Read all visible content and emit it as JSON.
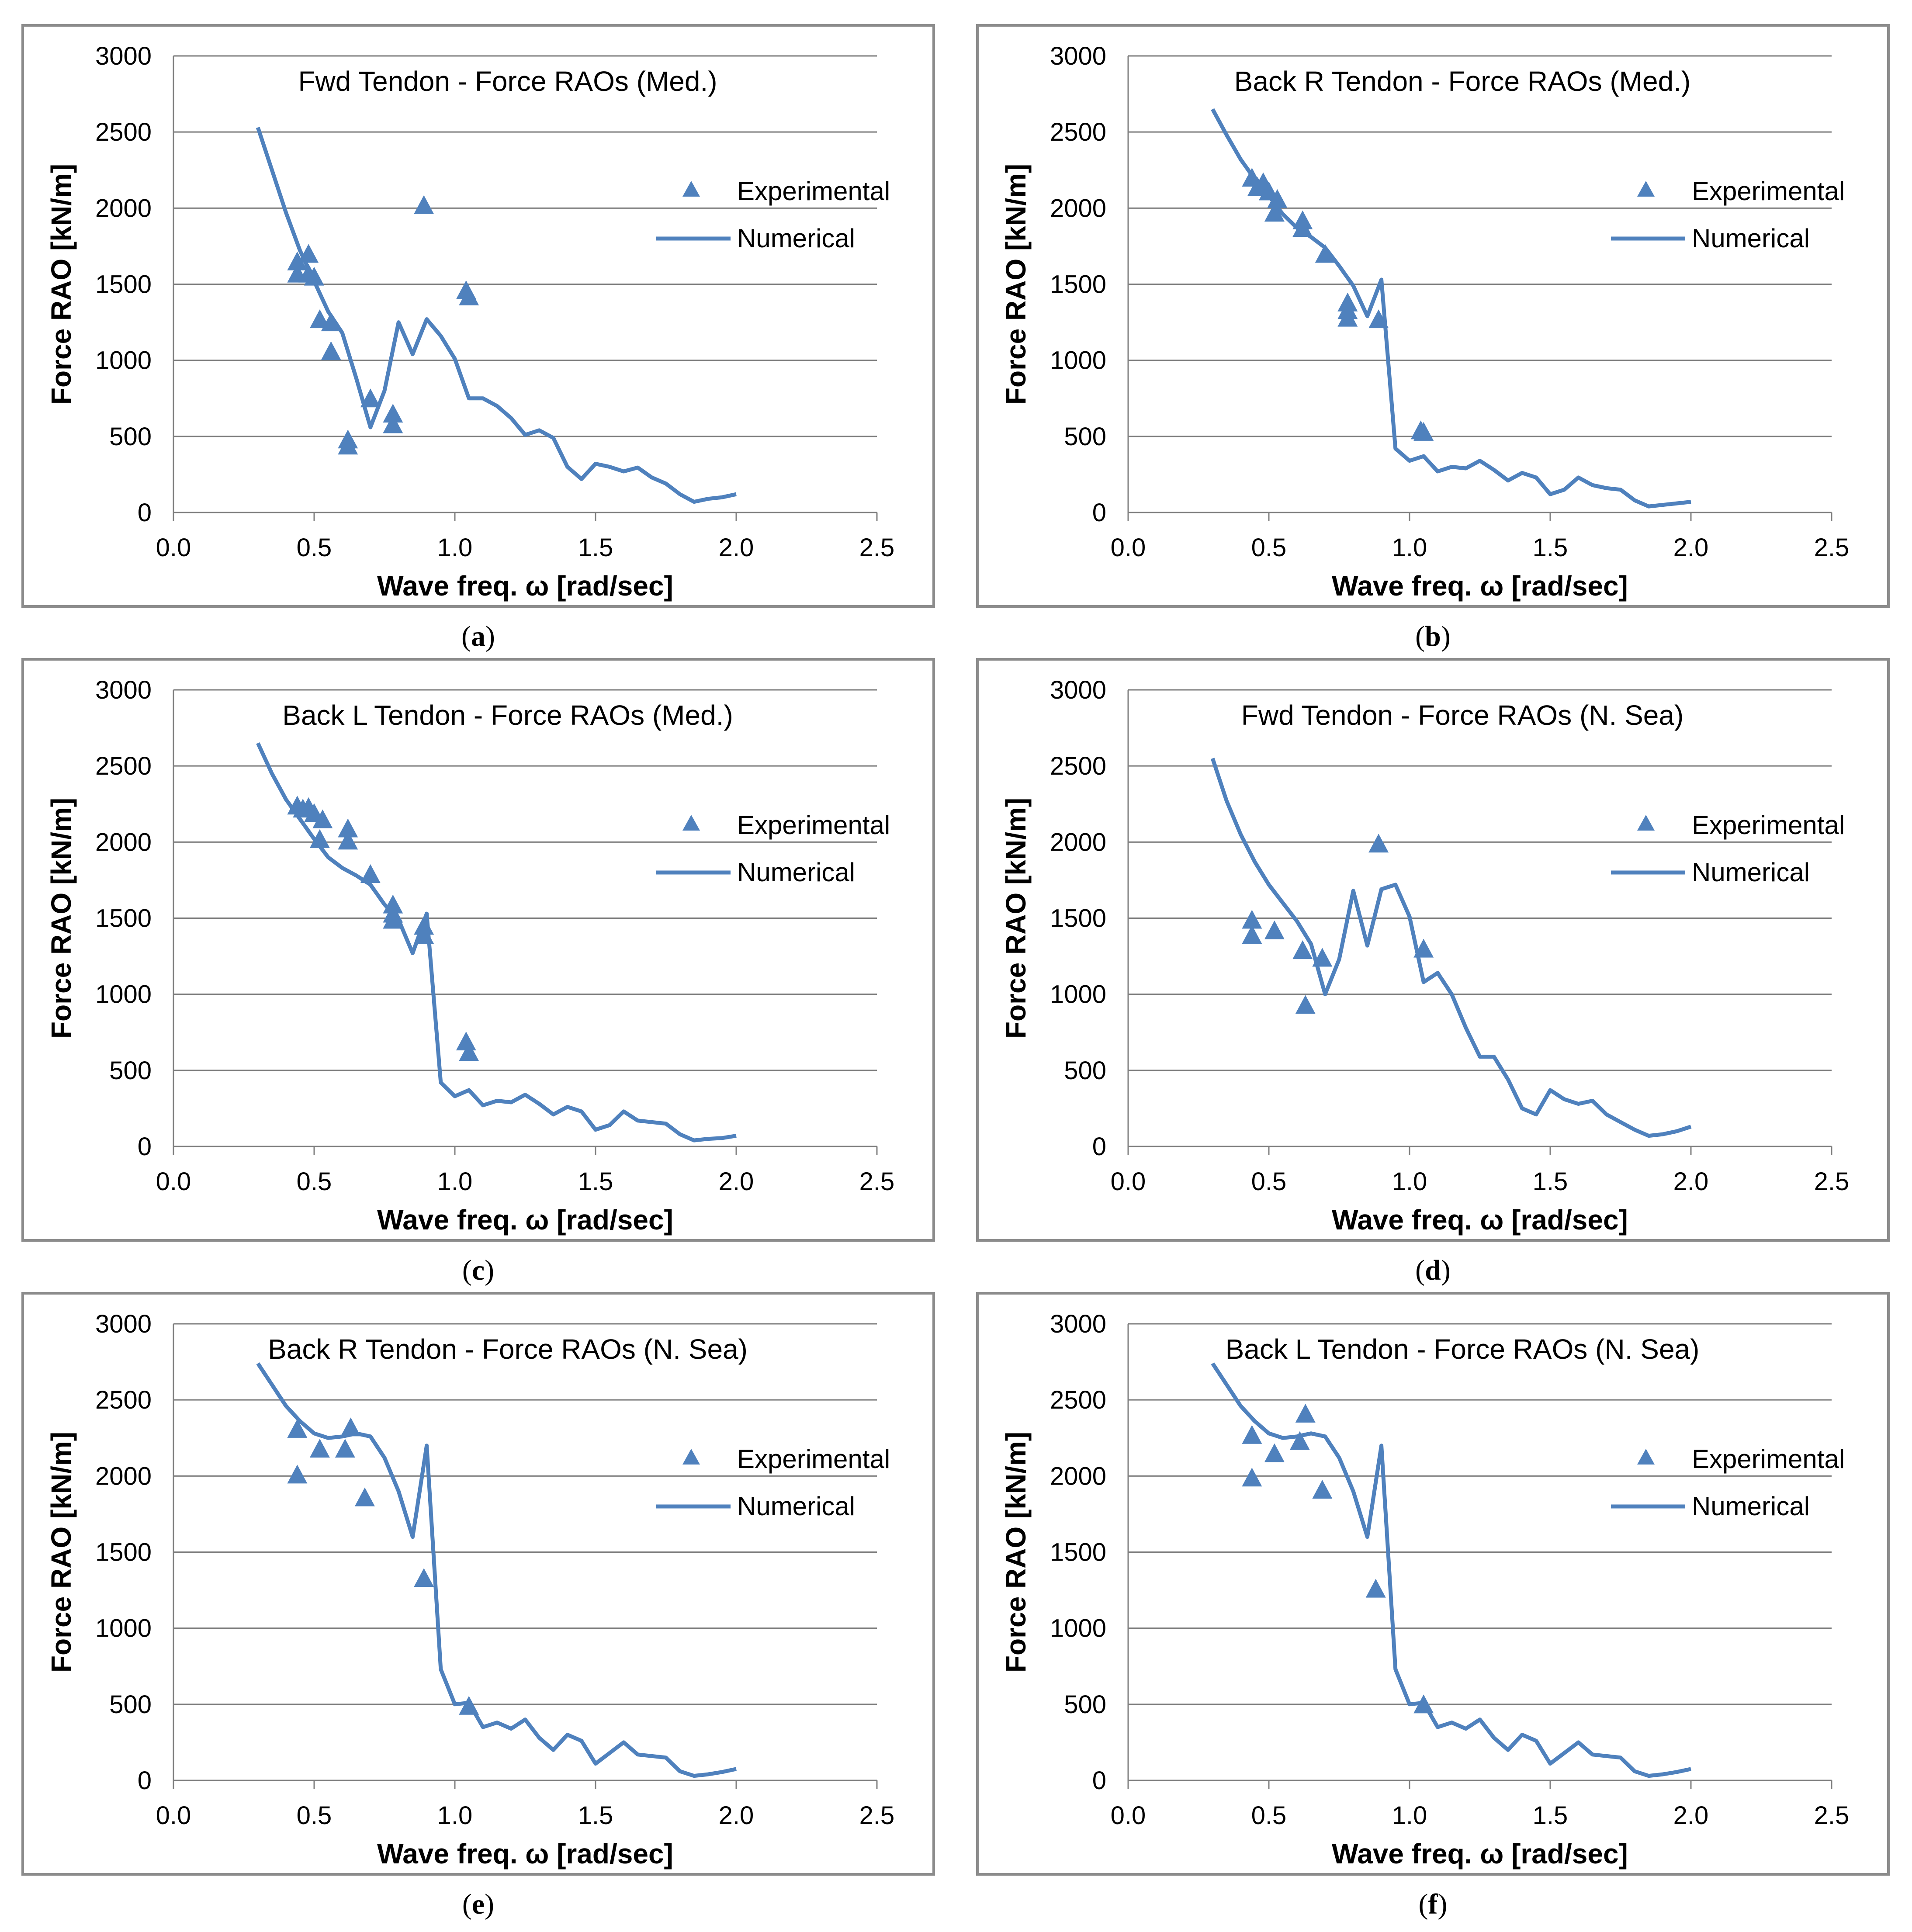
{
  "colors": {
    "series": "#4F81BD",
    "grid": "#7f7f7f",
    "frame": "#8c8c8c",
    "text": "#000000"
  },
  "chart_data": [
    {
      "label": "a",
      "type": "line",
      "title": "Fwd Tendon -  Force RAOs (Med.)",
      "xlabel": "Wave freq. ω [rad/sec]",
      "ylabel": "Force RAO [kN/m]",
      "xlim": [
        0,
        2.5
      ],
      "ylim": [
        0,
        3000
      ],
      "xticks": [
        "0.0",
        "0.5",
        "1.0",
        "1.5",
        "2.0",
        "2.5"
      ],
      "yticks": [
        "0",
        "500",
        "1000",
        "1500",
        "2000",
        "2500",
        "3000"
      ],
      "grid": "horizontal",
      "legend": {
        "position": "right",
        "entries": [
          "Experimental",
          "Numerical"
        ]
      },
      "series": [
        {
          "name": "Numerical",
          "kind": "line",
          "x": [
            0.3,
            0.4,
            0.45,
            0.5,
            0.55,
            0.6,
            0.65,
            0.7,
            0.75,
            0.8,
            0.85,
            0.9,
            0.95,
            1.0,
            1.05,
            1.1,
            1.15,
            1.2,
            1.25,
            1.3,
            1.35,
            1.4,
            1.45,
            1.5,
            1.55,
            1.6,
            1.65,
            1.7,
            1.75,
            1.8,
            1.85,
            1.9,
            1.95,
            2.0
          ],
          "y": [
            2530,
            1970,
            1720,
            1520,
            1320,
            1180,
            880,
            560,
            800,
            1250,
            1040,
            1270,
            1160,
            1010,
            750,
            750,
            700,
            620,
            510,
            540,
            490,
            300,
            220,
            320,
            300,
            270,
            295,
            230,
            190,
            120,
            70,
            90,
            100,
            120
          ]
        },
        {
          "name": "Experimental",
          "kind": "scatter",
          "x": [
            0.44,
            0.44,
            0.48,
            0.48,
            0.5,
            0.52,
            0.56,
            0.56,
            0.62,
            0.62,
            0.7,
            0.78,
            0.78,
            0.89,
            1.04,
            1.05
          ],
          "y": [
            1640,
            1560,
            1690,
            1560,
            1540,
            1260,
            1240,
            1050,
            470,
            430,
            740,
            640,
            570,
            2010,
            1450,
            1410
          ]
        }
      ]
    },
    {
      "label": "b",
      "type": "line",
      "title": "Back R Tendon -  Force RAOs (Med.)",
      "xlabel": "Wave freq. ω [rad/sec]",
      "ylabel": "Force RAO [kN/m]",
      "xlim": [
        0,
        2.5
      ],
      "ylim": [
        0,
        3000
      ],
      "xticks": [
        "0.0",
        "0.5",
        "1.0",
        "1.5",
        "2.0",
        "2.5"
      ],
      "yticks": [
        "0",
        "500",
        "1000",
        "1500",
        "2000",
        "2500",
        "3000"
      ],
      "grid": "horizontal",
      "legend": {
        "position": "right",
        "entries": [
          "Experimental",
          "Numerical"
        ]
      },
      "series": [
        {
          "name": "Numerical",
          "kind": "line",
          "x": [
            0.3,
            0.35,
            0.4,
            0.45,
            0.5,
            0.55,
            0.6,
            0.65,
            0.7,
            0.75,
            0.8,
            0.85,
            0.9,
            0.95,
            1.0,
            1.05,
            1.1,
            1.15,
            1.2,
            1.25,
            1.3,
            1.35,
            1.4,
            1.45,
            1.5,
            1.55,
            1.6,
            1.65,
            1.7,
            1.75,
            1.8,
            1.85,
            1.9,
            1.95,
            2.0
          ],
          "y": [
            2650,
            2480,
            2320,
            2190,
            2080,
            1960,
            1870,
            1810,
            1740,
            1620,
            1490,
            1290,
            1530,
            420,
            340,
            370,
            270,
            300,
            290,
            340,
            280,
            210,
            260,
            230,
            120,
            150,
            230,
            180,
            160,
            150,
            80,
            40,
            50,
            60,
            70
          ]
        },
        {
          "name": "Experimental",
          "kind": "scatter",
          "x": [
            0.44,
            0.46,
            0.48,
            0.5,
            0.52,
            0.53,
            0.62,
            0.62,
            0.7,
            0.78,
            0.78,
            0.78,
            0.89,
            1.04,
            1.05
          ],
          "y": [
            2190,
            2130,
            2160,
            2100,
            1960,
            2050,
            1910,
            1860,
            1690,
            1370,
            1320,
            1270,
            1260,
            530,
            520
          ]
        }
      ]
    },
    {
      "label": "c",
      "type": "line",
      "title": "Back L Tendon -  Force RAOs (Med.)",
      "xlabel": "Wave freq. ω [rad/sec]",
      "ylabel": "Force RAO [kN/m]",
      "xlim": [
        0,
        2.5
      ],
      "ylim": [
        0,
        3000
      ],
      "xticks": [
        "0.0",
        "0.5",
        "1.0",
        "1.5",
        "2.0",
        "2.5"
      ],
      "yticks": [
        "0",
        "500",
        "1000",
        "1500",
        "2000",
        "2500",
        "3000"
      ],
      "grid": "horizontal",
      "legend": {
        "position": "right",
        "entries": [
          "Experimental",
          "Numerical"
        ]
      },
      "series": [
        {
          "name": "Numerical",
          "kind": "line",
          "x": [
            0.3,
            0.35,
            0.4,
            0.45,
            0.5,
            0.55,
            0.6,
            0.65,
            0.7,
            0.75,
            0.8,
            0.85,
            0.9,
            0.95,
            1.0,
            1.05,
            1.1,
            1.15,
            1.2,
            1.25,
            1.3,
            1.35,
            1.4,
            1.45,
            1.5,
            1.55,
            1.6,
            1.65,
            1.7,
            1.75,
            1.8,
            1.85,
            1.9,
            1.95,
            2.0
          ],
          "y": [
            2650,
            2450,
            2280,
            2150,
            2020,
            1900,
            1830,
            1780,
            1720,
            1590,
            1490,
            1270,
            1530,
            420,
            330,
            370,
            270,
            300,
            290,
            340,
            280,
            210,
            260,
            230,
            110,
            140,
            230,
            170,
            160,
            150,
            80,
            40,
            50,
            55,
            70
          ]
        },
        {
          "name": "Experimental",
          "kind": "scatter",
          "x": [
            0.44,
            0.46,
            0.48,
            0.5,
            0.52,
            0.53,
            0.62,
            0.62,
            0.7,
            0.78,
            0.78,
            0.78,
            0.89,
            0.89,
            1.04,
            1.05
          ],
          "y": [
            2230,
            2210,
            2220,
            2180,
            2010,
            2140,
            2080,
            2000,
            1780,
            1580,
            1520,
            1480,
            1440,
            1380,
            680,
            610
          ]
        }
      ]
    },
    {
      "label": "d",
      "type": "line",
      "title": "Fwd Tendon - Force RAOs  (N. Sea)",
      "xlabel": "Wave freq. ω [rad/sec]",
      "ylabel": "Force RAO [kN/m]",
      "xlim": [
        0,
        2.5
      ],
      "ylim": [
        0,
        3000
      ],
      "xticks": [
        "0.0",
        "0.5",
        "1.0",
        "1.5",
        "2.0",
        "2.5"
      ],
      "yticks": [
        "0",
        "500",
        "1000",
        "1500",
        "2000",
        "2500",
        "3000"
      ],
      "grid": "horizontal",
      "legend": {
        "position": "right",
        "entries": [
          "Experimental",
          "Numerical"
        ]
      },
      "series": [
        {
          "name": "Numerical",
          "kind": "line",
          "x": [
            0.3,
            0.35,
            0.4,
            0.45,
            0.5,
            0.55,
            0.6,
            0.65,
            0.7,
            0.75,
            0.8,
            0.85,
            0.9,
            0.95,
            1.0,
            1.05,
            1.1,
            1.15,
            1.2,
            1.25,
            1.3,
            1.35,
            1.4,
            1.45,
            1.5,
            1.55,
            1.6,
            1.65,
            1.7,
            1.75,
            1.8,
            1.85,
            1.9,
            1.95,
            2.0
          ],
          "y": [
            2550,
            2270,
            2050,
            1870,
            1720,
            1600,
            1480,
            1330,
            1000,
            1230,
            1680,
            1320,
            1690,
            1720,
            1510,
            1080,
            1140,
            1000,
            780,
            590,
            590,
            440,
            250,
            210,
            370,
            310,
            280,
            300,
            210,
            160,
            110,
            70,
            80,
            100,
            130
          ]
        },
        {
          "name": "Experimental",
          "kind": "scatter",
          "x": [
            0.44,
            0.44,
            0.52,
            0.62,
            0.63,
            0.69,
            0.89,
            1.05
          ],
          "y": [
            1480,
            1380,
            1410,
            1280,
            920,
            1230,
            1980,
            1290
          ]
        }
      ]
    },
    {
      "label": "e",
      "type": "line",
      "title": "Back R Tendon - Force RAOs  (N. Sea)",
      "xlabel": "Wave freq. ω [rad/sec]",
      "ylabel": "Force RAO [kN/m]",
      "xlim": [
        0,
        2.5
      ],
      "ylim": [
        0,
        3000
      ],
      "xticks": [
        "0.0",
        "0.5",
        "1.0",
        "1.5",
        "2.0",
        "2.5"
      ],
      "yticks": [
        "0",
        "500",
        "1000",
        "1500",
        "2000",
        "2500",
        "3000"
      ],
      "grid": "horizontal",
      "legend": {
        "position": "right",
        "entries": [
          "Experimental",
          "Numerical"
        ]
      },
      "series": [
        {
          "name": "Numerical",
          "kind": "line",
          "x": [
            0.3,
            0.35,
            0.4,
            0.45,
            0.5,
            0.55,
            0.6,
            0.65,
            0.7,
            0.75,
            0.8,
            0.85,
            0.9,
            0.95,
            1.0,
            1.05,
            1.1,
            1.15,
            1.2,
            1.25,
            1.3,
            1.35,
            1.4,
            1.45,
            1.5,
            1.55,
            1.6,
            1.65,
            1.7,
            1.75,
            1.8,
            1.85,
            1.9,
            1.95,
            2.0
          ],
          "y": [
            2740,
            2600,
            2460,
            2360,
            2280,
            2250,
            2260,
            2280,
            2260,
            2120,
            1900,
            1600,
            2200,
            730,
            500,
            510,
            350,
            380,
            340,
            400,
            280,
            200,
            300,
            260,
            110,
            180,
            250,
            170,
            160,
            150,
            60,
            30,
            40,
            55,
            75
          ]
        },
        {
          "name": "Experimental",
          "kind": "scatter",
          "x": [
            0.44,
            0.44,
            0.52,
            0.61,
            0.63,
            0.68,
            0.89,
            1.05
          ],
          "y": [
            2300,
            2000,
            2170,
            2170,
            2310,
            1850,
            1320,
            480
          ]
        }
      ]
    },
    {
      "label": "f",
      "type": "line",
      "title": "Back L Tendon - Force RAOs  (N. Sea)",
      "xlabel": "Wave freq. ω [rad/sec]",
      "ylabel": "Force RAO [kN/m]",
      "xlim": [
        0,
        2.5
      ],
      "ylim": [
        0,
        3000
      ],
      "xticks": [
        "0.0",
        "0.5",
        "1.0",
        "1.5",
        "2.0",
        "2.5"
      ],
      "yticks": [
        "0",
        "500",
        "1000",
        "1500",
        "2000",
        "2500",
        "3000"
      ],
      "grid": "horizontal",
      "legend": {
        "position": "right",
        "entries": [
          "Experimental",
          "Numerical"
        ]
      },
      "series": [
        {
          "name": "Numerical",
          "kind": "line",
          "x": [
            0.3,
            0.35,
            0.4,
            0.45,
            0.5,
            0.55,
            0.6,
            0.65,
            0.7,
            0.75,
            0.8,
            0.85,
            0.9,
            0.95,
            1.0,
            1.05,
            1.1,
            1.15,
            1.2,
            1.25,
            1.3,
            1.35,
            1.4,
            1.45,
            1.5,
            1.55,
            1.6,
            1.65,
            1.7,
            1.75,
            1.8,
            1.85,
            1.9,
            1.95,
            2.0
          ],
          "y": [
            2740,
            2600,
            2460,
            2360,
            2280,
            2250,
            2260,
            2280,
            2260,
            2120,
            1900,
            1600,
            2200,
            730,
            500,
            510,
            350,
            380,
            340,
            400,
            280,
            200,
            300,
            260,
            110,
            180,
            250,
            170,
            160,
            150,
            60,
            30,
            40,
            55,
            75
          ]
        },
        {
          "name": "Experimental",
          "kind": "scatter",
          "x": [
            0.44,
            0.44,
            0.52,
            0.61,
            0.63,
            0.69,
            0.88,
            1.05
          ],
          "y": [
            2260,
            1980,
            2140,
            2220,
            2400,
            1900,
            1250,
            490
          ]
        }
      ]
    }
  ]
}
